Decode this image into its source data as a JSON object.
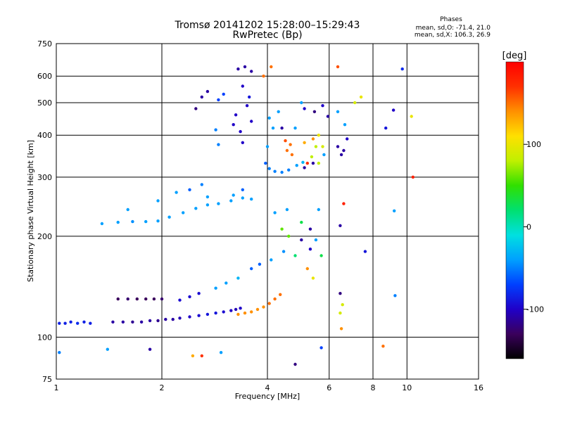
{
  "header": {
    "title": "Tromsø 20141202 15:28:00–15:29:43",
    "subtitle": "RwPretec (Bp)",
    "phases_title": "Phases",
    "phases_o": "mean, sd,O: -71.4, 21.0",
    "phases_x": "mean, sd,X: 106.3, 26.9"
  },
  "colorbar": {
    "label": "[deg]",
    "ticks": [
      {
        "value": 100,
        "label": "100"
      },
      {
        "value": 0,
        "label": "0"
      },
      {
        "value": -100,
        "label": "-100"
      }
    ],
    "range": [
      -160,
      200
    ],
    "colors": [
      "#000000",
      "#3a005c",
      "#2000c8",
      "#0040ff",
      "#00a0ff",
      "#00e0e0",
      "#00e070",
      "#30e000",
      "#c0f000",
      "#ffe000",
      "#ff9000",
      "#ff3000",
      "#ff0000"
    ]
  },
  "chart_data": {
    "type": "scatter",
    "title": "Tromsø 20141202 15:28:00–15:29:43",
    "subtitle": "RwPretec (Bp)",
    "xlabel": "Frequency [MHz]",
    "ylabel": "Stationary phase Virtual Height [km]",
    "x_scale": "log",
    "y_scale": "log",
    "xlim": [
      1,
      16
    ],
    "ylim": [
      75,
      750
    ],
    "grid": true,
    "x_ticks": [
      {
        "value": 1,
        "label": "1"
      },
      {
        "value": 2,
        "label": "2"
      },
      {
        "value": 4,
        "label": "4"
      },
      {
        "value": 6,
        "label": "6"
      },
      {
        "value": 8,
        "label": "8"
      },
      {
        "value": 10,
        "label": "10"
      },
      {
        "value": 16,
        "label": "16"
      }
    ],
    "x_gridlines": [
      2,
      4,
      6,
      8,
      10
    ],
    "y_ticks": [
      {
        "value": 75,
        "label": "75"
      },
      {
        "value": 100,
        "label": "100"
      },
      {
        "value": 200,
        "label": "200"
      },
      {
        "value": 300,
        "label": "300"
      },
      {
        "value": 400,
        "label": "400"
      },
      {
        "value": 500,
        "label": "500"
      },
      {
        "value": 600,
        "label": "600"
      },
      {
        "value": 750,
        "label": "750"
      }
    ],
    "y_gridlines": [
      100,
      200,
      300,
      400,
      500,
      600
    ],
    "series": [
      {
        "points": [
          [
            1.02,
            110,
            -85
          ],
          [
            1.06,
            110,
            -85
          ],
          [
            1.1,
            111,
            -85
          ],
          [
            1.15,
            110,
            -80
          ],
          [
            1.2,
            111,
            -85
          ],
          [
            1.25,
            110,
            -85
          ],
          [
            1.45,
            111,
            -110
          ],
          [
            1.55,
            111,
            -110
          ],
          [
            1.65,
            111,
            -115
          ],
          [
            1.75,
            111,
            -110
          ],
          [
            1.85,
            112,
            -110
          ],
          [
            1.95,
            112,
            -115
          ],
          [
            2.05,
            113,
            -110
          ],
          [
            2.15,
            113,
            -110
          ],
          [
            2.25,
            114,
            -105
          ],
          [
            2.4,
            115,
            -100
          ],
          [
            2.55,
            116,
            -95
          ],
          [
            2.7,
            117,
            -90
          ],
          [
            2.85,
            118,
            -90
          ],
          [
            3.0,
            119,
            -95
          ],
          [
            3.15,
            120,
            -100
          ],
          [
            3.25,
            121,
            -105
          ],
          [
            3.35,
            122,
            -100
          ],
          [
            3.3,
            117,
            140
          ],
          [
            3.45,
            118,
            140
          ],
          [
            3.6,
            119,
            140
          ],
          [
            3.75,
            121,
            140
          ],
          [
            3.9,
            123,
            140
          ],
          [
            4.05,
            126,
            150
          ],
          [
            4.2,
            130,
            150
          ],
          [
            4.35,
            134,
            150
          ],
          [
            1.5,
            130,
            -130
          ],
          [
            1.6,
            130,
            -125
          ],
          [
            1.7,
            130,
            -130
          ],
          [
            1.8,
            130,
            -130
          ],
          [
            1.9,
            130,
            -130
          ],
          [
            2.0,
            130,
            -125
          ],
          [
            2.25,
            129,
            -95
          ],
          [
            2.4,
            132,
            -95
          ],
          [
            2.55,
            135,
            -95
          ],
          [
            2.85,
            140,
            -40
          ],
          [
            3.05,
            145,
            -40
          ],
          [
            3.3,
            150,
            -30
          ],
          [
            3.6,
            160,
            -60
          ],
          [
            3.8,
            165,
            -60
          ],
          [
            4.1,
            170,
            -40
          ],
          [
            4.45,
            180,
            -45
          ],
          [
            4.8,
            175,
            20
          ],
          [
            5.2,
            160,
            140
          ],
          [
            5.4,
            150,
            100
          ],
          [
            5.7,
            175,
            30
          ],
          [
            1.35,
            218,
            -40
          ],
          [
            1.5,
            220,
            -40
          ],
          [
            1.65,
            221,
            -45
          ],
          [
            1.8,
            221,
            -40
          ],
          [
            1.95,
            222,
            -40
          ],
          [
            2.1,
            228,
            -40
          ],
          [
            2.3,
            235,
            -40
          ],
          [
            2.5,
            242,
            -40
          ],
          [
            2.7,
            248,
            -40
          ],
          [
            2.9,
            250,
            -40
          ],
          [
            3.15,
            255,
            -40
          ],
          [
            3.4,
            260,
            -40
          ],
          [
            3.6,
            258,
            -40
          ],
          [
            2.4,
            275,
            -60
          ],
          [
            3.4,
            275,
            -60
          ],
          [
            2.6,
            285,
            -50
          ],
          [
            1.6,
            240,
            -40
          ],
          [
            1.95,
            255,
            -40
          ],
          [
            2.2,
            270,
            -40
          ],
          [
            2.7,
            262,
            -40
          ],
          [
            3.2,
            265,
            -40
          ],
          [
            3.3,
            630,
            -110
          ],
          [
            3.45,
            640,
            -110
          ],
          [
            3.6,
            620,
            -110
          ],
          [
            3.4,
            560,
            -100
          ],
          [
            3.55,
            520,
            -90
          ],
          [
            3.25,
            460,
            -100
          ],
          [
            3.5,
            490,
            -100
          ],
          [
            3.2,
            430,
            -100
          ],
          [
            3.35,
            410,
            -100
          ],
          [
            3.6,
            440,
            -100
          ],
          [
            3.4,
            380,
            -100
          ],
          [
            2.6,
            520,
            -110
          ],
          [
            2.7,
            540,
            -110
          ],
          [
            2.9,
            510,
            -70
          ],
          [
            3.0,
            530,
            -70
          ],
          [
            2.5,
            480,
            -120
          ],
          [
            2.85,
            415,
            -50
          ],
          [
            2.9,
            375,
            -50
          ],
          [
            3.95,
            330,
            -60
          ],
          [
            4.05,
            318,
            -50
          ],
          [
            4.2,
            312,
            -50
          ],
          [
            4.4,
            310,
            -50
          ],
          [
            4.6,
            315,
            -50
          ],
          [
            4.85,
            325,
            -40
          ],
          [
            5.05,
            332,
            -30
          ],
          [
            4.0,
            370,
            -40
          ],
          [
            4.15,
            420,
            -40
          ],
          [
            4.05,
            450,
            -40
          ],
          [
            4.3,
            470,
            -40
          ],
          [
            4.5,
            385,
            160
          ],
          [
            4.65,
            375,
            150
          ],
          [
            4.55,
            360,
            150
          ],
          [
            4.7,
            350,
            150
          ],
          [
            5.1,
            380,
            130
          ],
          [
            5.4,
            390,
            140
          ],
          [
            5.6,
            400,
            100
          ],
          [
            5.5,
            370,
            80
          ],
          [
            5.35,
            345,
            80
          ],
          [
            5.6,
            330,
            80
          ],
          [
            5.75,
            370,
            90
          ],
          [
            5.2,
            330,
            170
          ],
          [
            5.1,
            320,
            -110
          ],
          [
            5.4,
            330,
            -110
          ],
          [
            5.8,
            350,
            -40
          ],
          [
            6.35,
            370,
            -110
          ],
          [
            6.6,
            360,
            -110
          ],
          [
            6.75,
            390,
            -100
          ],
          [
            6.5,
            350,
            -110
          ],
          [
            5.1,
            480,
            -100
          ],
          [
            5.45,
            470,
            -120
          ],
          [
            5.95,
            455,
            -110
          ],
          [
            5.75,
            490,
            -100
          ],
          [
            6.35,
            470,
            -40
          ],
          [
            6.65,
            430,
            -40
          ],
          [
            7.1,
            500,
            90
          ],
          [
            7.4,
            520,
            100
          ],
          [
            4.1,
            640,
            150
          ],
          [
            3.9,
            600,
            150
          ],
          [
            4.4,
            420,
            -110
          ],
          [
            4.8,
            420,
            -40
          ],
          [
            5.0,
            500,
            -40
          ],
          [
            6.35,
            640,
            160
          ],
          [
            9.15,
            475,
            -100
          ],
          [
            9.7,
            630,
            -80
          ],
          [
            8.7,
            420,
            -90
          ],
          [
            10.3,
            455,
            100
          ],
          [
            10.4,
            300,
            180
          ],
          [
            4.2,
            235,
            -40
          ],
          [
            4.55,
            240,
            -40
          ],
          [
            5.0,
            220,
            30
          ],
          [
            5.3,
            210,
            -110
          ],
          [
            5.6,
            240,
            -40
          ],
          [
            6.6,
            250,
            180
          ],
          [
            6.45,
            215,
            -110
          ],
          [
            7.6,
            180,
            -90
          ],
          [
            4.6,
            200,
            60
          ],
          [
            4.4,
            210,
            60
          ],
          [
            6.45,
            135,
            -120
          ],
          [
            6.55,
            125,
            90
          ],
          [
            6.45,
            118,
            90
          ],
          [
            6.5,
            106,
            140
          ],
          [
            9.25,
            133,
            -50
          ],
          [
            9.2,
            238,
            -40
          ],
          [
            1.02,
            90,
            -50
          ],
          [
            1.4,
            92,
            -40
          ],
          [
            1.85,
            92,
            -110
          ],
          [
            2.45,
            88,
            130
          ],
          [
            2.6,
            88,
            170
          ],
          [
            2.95,
            90,
            -40
          ],
          [
            4.8,
            83,
            -120
          ],
          [
            5.7,
            93,
            -70
          ],
          [
            8.55,
            94,
            150
          ],
          [
            5.5,
            195,
            -40
          ],
          [
            5.3,
            183,
            -100
          ],
          [
            5.0,
            195,
            -110
          ]
        ]
      }
    ]
  }
}
